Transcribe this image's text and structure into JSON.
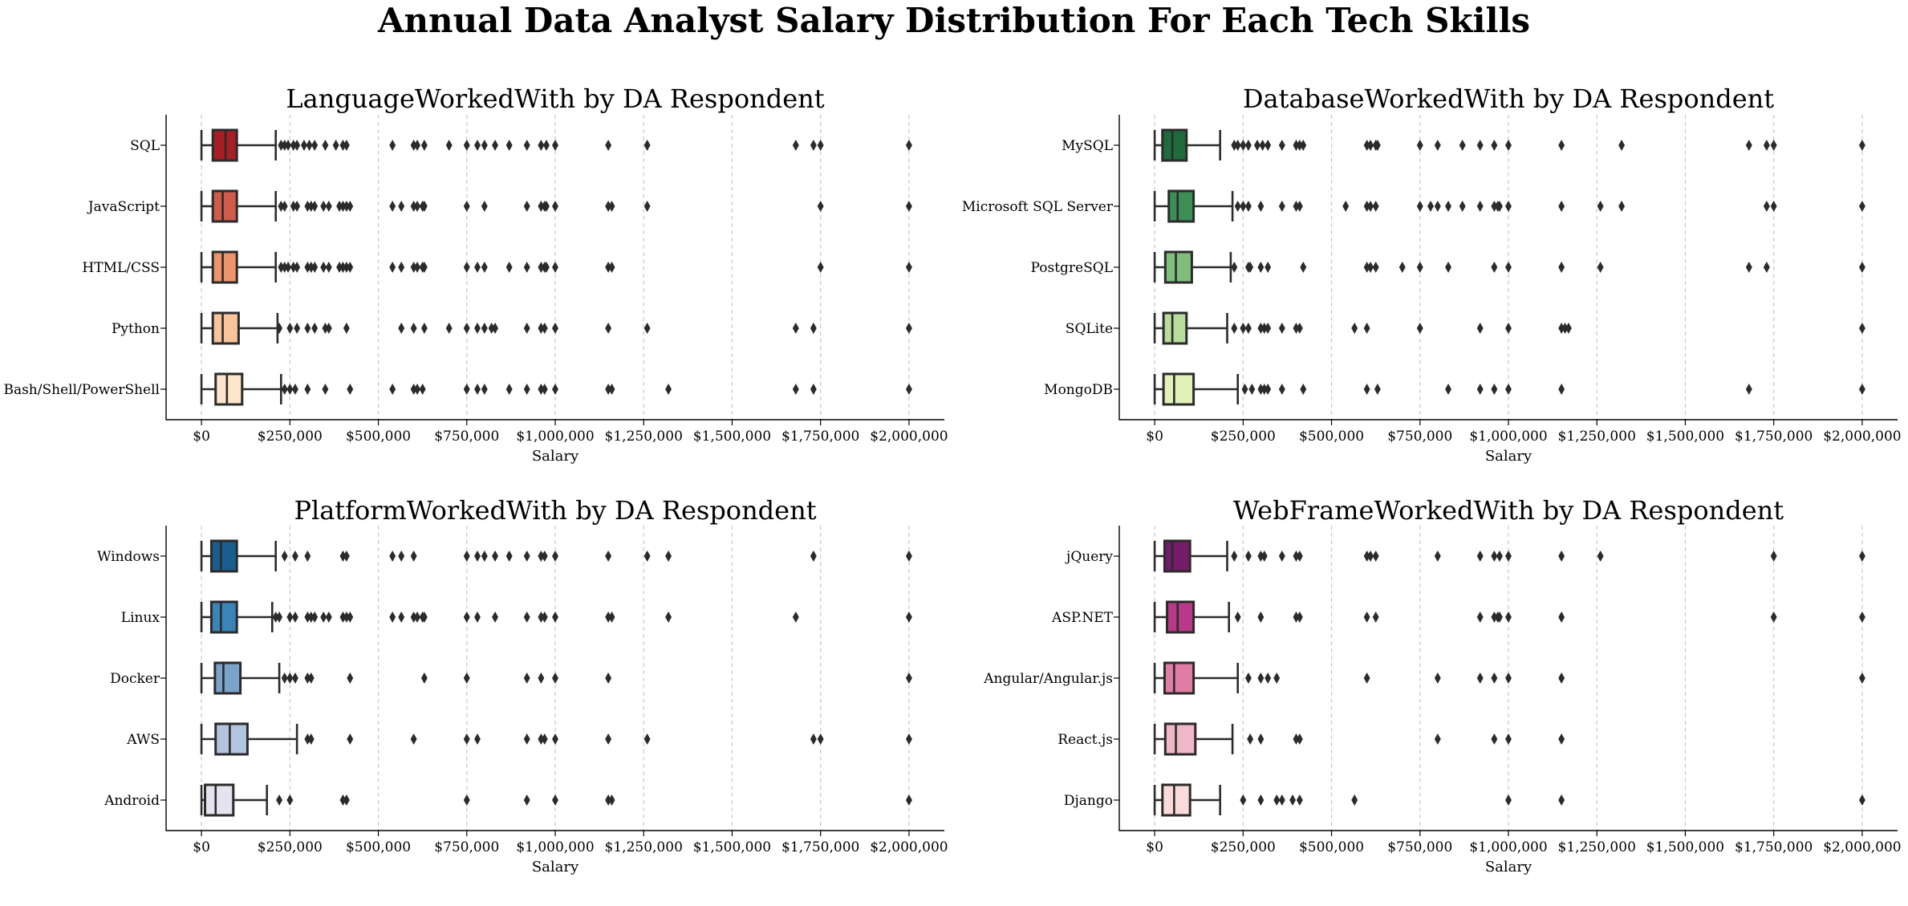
{
  "figure": {
    "title": "Annual Data Analyst Salary Distribution For Each Tech Skills"
  },
  "chart_data": [
    {
      "type": "box",
      "orientation": "horizontal",
      "title": "LanguageWorkedWith by DA Respondent",
      "xlabel": "Salary",
      "ylabel": "",
      "xlim": [
        -100000,
        2100000
      ],
      "xticks": [
        0,
        250000,
        500000,
        750000,
        1000000,
        1250000,
        1500000,
        1750000,
        2000000
      ],
      "xtick_labels": [
        "$0",
        "$250,000",
        "$500,000",
        "$750,000",
        "$1,000,000",
        "$1,250,000",
        "$1,500,000",
        "$1,750,000",
        "$2,000,000"
      ],
      "grid": "x-dashed",
      "categories": [
        {
          "name": "SQL",
          "color": "#a71f24",
          "whislo": 0,
          "q1": 32000,
          "median": 68000,
          "q3": 100000,
          "whishi": 210000,
          "fliers": [
            225000,
            235000,
            245000,
            260000,
            270000,
            290000,
            305000,
            320000,
            350000,
            380000,
            400000,
            410000,
            540000,
            600000,
            610000,
            630000,
            700000,
            750000,
            780000,
            800000,
            830000,
            870000,
            920000,
            960000,
            975000,
            1000000,
            1150000,
            1260000,
            1680000,
            1730000,
            1750000,
            2000000
          ]
        },
        {
          "name": "JavaScript",
          "color": "#d15b4a",
          "whislo": 0,
          "q1": 32000,
          "median": 60000,
          "q3": 100000,
          "whishi": 210000,
          "fliers": [
            225000,
            235000,
            260000,
            270000,
            300000,
            310000,
            320000,
            345000,
            360000,
            390000,
            400000,
            410000,
            420000,
            540000,
            565000,
            600000,
            610000,
            625000,
            630000,
            750000,
            800000,
            920000,
            960000,
            970000,
            975000,
            1000000,
            1150000,
            1160000,
            1260000,
            1750000,
            2000000
          ]
        },
        {
          "name": "HTML/CSS",
          "color": "#ee936a",
          "whislo": 0,
          "q1": 32000,
          "median": 60000,
          "q3": 100000,
          "whishi": 210000,
          "fliers": [
            225000,
            235000,
            245000,
            260000,
            270000,
            300000,
            310000,
            320000,
            345000,
            360000,
            390000,
            400000,
            410000,
            420000,
            540000,
            565000,
            600000,
            610000,
            625000,
            630000,
            750000,
            780000,
            800000,
            870000,
            920000,
            960000,
            970000,
            975000,
            1000000,
            1150000,
            1160000,
            1750000,
            2000000
          ]
        },
        {
          "name": "Python",
          "color": "#f8c49c",
          "whislo": 0,
          "q1": 32000,
          "median": 60000,
          "q3": 105000,
          "whishi": 215000,
          "fliers": [
            220000,
            250000,
            270000,
            300000,
            320000,
            350000,
            360000,
            410000,
            565000,
            600000,
            630000,
            700000,
            750000,
            780000,
            800000,
            820000,
            830000,
            920000,
            960000,
            970000,
            1000000,
            1150000,
            1260000,
            1680000,
            1730000,
            2000000
          ]
        },
        {
          "name": "Bash/Shell/PowerShell",
          "color": "#fde5cc",
          "whislo": 0,
          "q1": 40000,
          "median": 72000,
          "q3": 115000,
          "whishi": 225000,
          "fliers": [
            235000,
            250000,
            265000,
            300000,
            350000,
            420000,
            540000,
            600000,
            610000,
            625000,
            750000,
            780000,
            800000,
            870000,
            920000,
            960000,
            970000,
            1000000,
            1150000,
            1160000,
            1320000,
            1680000,
            1730000,
            2000000
          ]
        }
      ]
    },
    {
      "type": "box",
      "orientation": "horizontal",
      "title": "DatabaseWorkedWith by DA Respondent",
      "xlabel": "Salary",
      "ylabel": "",
      "xlim": [
        -100000,
        2100000
      ],
      "xticks": [
        0,
        250000,
        500000,
        750000,
        1000000,
        1250000,
        1500000,
        1750000,
        2000000
      ],
      "xtick_labels": [
        "$0",
        "$250,000",
        "$500,000",
        "$750,000",
        "$1,000,000",
        "$1,250,000",
        "$1,500,000",
        "$1,750,000",
        "$2,000,000"
      ],
      "grid": "x-dashed",
      "categories": [
        {
          "name": "MySQL",
          "color": "#1f6b3d",
          "whislo": 0,
          "q1": 22000,
          "median": 50000,
          "q3": 90000,
          "whishi": 185000,
          "fliers": [
            225000,
            235000,
            250000,
            265000,
            290000,
            305000,
            320000,
            360000,
            400000,
            410000,
            420000,
            600000,
            610000,
            625000,
            630000,
            750000,
            800000,
            870000,
            920000,
            960000,
            1000000,
            1150000,
            1320000,
            1680000,
            1730000,
            1750000,
            2000000
          ]
        },
        {
          "name": "Microsoft SQL Server",
          "color": "#3c8f54",
          "whislo": 0,
          "q1": 40000,
          "median": 65000,
          "q3": 110000,
          "whishi": 220000,
          "fliers": [
            235000,
            250000,
            265000,
            300000,
            360000,
            400000,
            410000,
            540000,
            600000,
            610000,
            625000,
            750000,
            780000,
            800000,
            830000,
            870000,
            920000,
            960000,
            970000,
            975000,
            1000000,
            1150000,
            1260000,
            1320000,
            1730000,
            1750000,
            2000000
          ]
        },
        {
          "name": "PostgreSQL",
          "color": "#7fbf7b",
          "whislo": 0,
          "q1": 30000,
          "median": 60000,
          "q3": 105000,
          "whishi": 215000,
          "fliers": [
            225000,
            265000,
            270000,
            300000,
            320000,
            420000,
            600000,
            610000,
            625000,
            700000,
            750000,
            830000,
            960000,
            1000000,
            1150000,
            1260000,
            1680000,
            1730000,
            2000000
          ]
        },
        {
          "name": "SQLite",
          "color": "#b8dc9c",
          "whislo": 0,
          "q1": 25000,
          "median": 50000,
          "q3": 90000,
          "whishi": 205000,
          "fliers": [
            225000,
            250000,
            265000,
            300000,
            310000,
            320000,
            360000,
            400000,
            410000,
            565000,
            600000,
            750000,
            920000,
            1000000,
            1150000,
            1160000,
            1170000,
            2000000
          ]
        },
        {
          "name": "MongoDB",
          "color": "#e2f2b9",
          "whislo": 0,
          "q1": 25000,
          "median": 55000,
          "q3": 110000,
          "whishi": 235000,
          "fliers": [
            255000,
            275000,
            300000,
            310000,
            320000,
            360000,
            420000,
            600000,
            630000,
            830000,
            920000,
            960000,
            1000000,
            1150000,
            1680000,
            2000000
          ]
        }
      ]
    },
    {
      "type": "box",
      "orientation": "horizontal",
      "title": "PlatformWorkedWith by DA Respondent",
      "xlabel": "Salary",
      "ylabel": "",
      "xlim": [
        -100000,
        2100000
      ],
      "xticks": [
        0,
        250000,
        500000,
        750000,
        1000000,
        1250000,
        1500000,
        1750000,
        2000000
      ],
      "xtick_labels": [
        "$0",
        "$250,000",
        "$500,000",
        "$750,000",
        "$1,000,000",
        "$1,250,000",
        "$1,500,000",
        "$1,750,000",
        "$2,000,000"
      ],
      "grid": "x-dashed",
      "categories": [
        {
          "name": "Windows",
          "color": "#1a5e8d",
          "whislo": 0,
          "q1": 28000,
          "median": 55000,
          "q3": 100000,
          "whishi": 210000,
          "fliers": [
            235000,
            265000,
            300000,
            400000,
            410000,
            540000,
            565000,
            600000,
            750000,
            780000,
            800000,
            830000,
            870000,
            920000,
            960000,
            970000,
            1000000,
            1150000,
            1260000,
            1320000,
            1730000,
            2000000
          ]
        },
        {
          "name": "Linux",
          "color": "#3a84b8",
          "whislo": 0,
          "q1": 28000,
          "median": 55000,
          "q3": 100000,
          "whishi": 200000,
          "fliers": [
            210000,
            220000,
            250000,
            265000,
            300000,
            310000,
            320000,
            345000,
            360000,
            400000,
            410000,
            420000,
            540000,
            565000,
            600000,
            610000,
            625000,
            630000,
            750000,
            780000,
            830000,
            920000,
            960000,
            970000,
            1000000,
            1150000,
            1160000,
            1320000,
            1680000,
            2000000
          ]
        },
        {
          "name": "Docker",
          "color": "#79a3c8",
          "whislo": 0,
          "q1": 38000,
          "median": 62000,
          "q3": 110000,
          "whishi": 220000,
          "fliers": [
            235000,
            250000,
            265000,
            300000,
            310000,
            420000,
            630000,
            750000,
            920000,
            960000,
            1000000,
            1150000,
            2000000
          ]
        },
        {
          "name": "AWS",
          "color": "#b3c4df",
          "whislo": 0,
          "q1": 40000,
          "median": 80000,
          "q3": 130000,
          "whishi": 270000,
          "fliers": [
            300000,
            310000,
            420000,
            600000,
            750000,
            780000,
            920000,
            960000,
            970000,
            1000000,
            1150000,
            1260000,
            1730000,
            1750000,
            2000000
          ]
        },
        {
          "name": "Android",
          "color": "#e4e3ef",
          "whislo": 0,
          "q1": 10000,
          "median": 40000,
          "q3": 90000,
          "whishi": 185000,
          "fliers": [
            220000,
            250000,
            400000,
            410000,
            750000,
            920000,
            1000000,
            1150000,
            1160000,
            2000000
          ]
        }
      ]
    },
    {
      "type": "box",
      "orientation": "horizontal",
      "title": "WebFrameWorkedWith by DA Respondent",
      "xlabel": "Salary",
      "ylabel": "",
      "xlim": [
        -100000,
        2100000
      ],
      "xticks": [
        0,
        250000,
        500000,
        750000,
        1000000,
        1250000,
        1500000,
        1750000,
        2000000
      ],
      "xtick_labels": [
        "$0",
        "$250,000",
        "$500,000",
        "$750,000",
        "$1,000,000",
        "$1,250,000",
        "$1,500,000",
        "$1,750,000",
        "$2,000,000"
      ],
      "grid": "x-dashed",
      "categories": [
        {
          "name": "jQuery",
          "color": "#741b69",
          "whislo": 0,
          "q1": 28000,
          "median": 50000,
          "q3": 100000,
          "whishi": 205000,
          "fliers": [
            225000,
            265000,
            300000,
            310000,
            360000,
            400000,
            410000,
            600000,
            610000,
            625000,
            800000,
            920000,
            960000,
            975000,
            1000000,
            1150000,
            1260000,
            1750000,
            2000000
          ]
        },
        {
          "name": "ASP.NET",
          "color": "#b8388a",
          "whislo": 0,
          "q1": 35000,
          "median": 65000,
          "q3": 110000,
          "whishi": 210000,
          "fliers": [
            235000,
            300000,
            400000,
            410000,
            600000,
            625000,
            920000,
            960000,
            970000,
            975000,
            1000000,
            1150000,
            1750000,
            2000000
          ]
        },
        {
          "name": "Angular/Angular.js",
          "color": "#e17ca5",
          "whislo": 0,
          "q1": 28000,
          "median": 55000,
          "q3": 110000,
          "whishi": 235000,
          "fliers": [
            265000,
            300000,
            320000,
            345000,
            600000,
            800000,
            920000,
            960000,
            1000000,
            1150000,
            2000000
          ]
        },
        {
          "name": "React.js",
          "color": "#f0b7c8",
          "whislo": 0,
          "q1": 30000,
          "median": 60000,
          "q3": 115000,
          "whishi": 220000,
          "fliers": [
            270000,
            300000,
            400000,
            410000,
            800000,
            960000,
            1000000,
            1150000
          ]
        },
        {
          "name": "Django",
          "color": "#fadadb",
          "whislo": 0,
          "q1": 22000,
          "median": 55000,
          "q3": 100000,
          "whishi": 185000,
          "fliers": [
            250000,
            300000,
            345000,
            360000,
            390000,
            410000,
            565000,
            1000000,
            1150000,
            2000000
          ]
        }
      ]
    }
  ]
}
